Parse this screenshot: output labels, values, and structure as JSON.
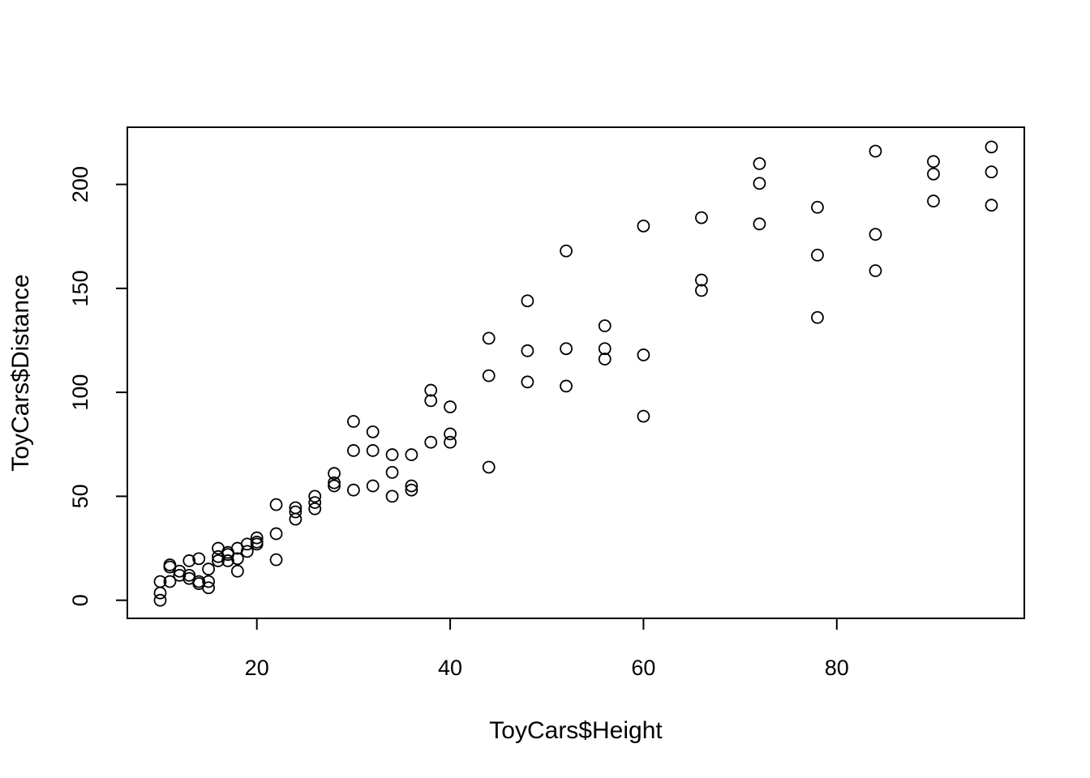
{
  "chart_data": {
    "type": "scatter",
    "title": "",
    "xlabel": "ToyCars$Height",
    "ylabel": "ToyCars$Distance",
    "xlim": [
      6.6,
      99.4
    ],
    "ylim": [
      -8.7,
      227.5
    ],
    "x_ticks": [
      20,
      40,
      60,
      80
    ],
    "x_tick_labels": [
      "20",
      "40",
      "60",
      "80"
    ],
    "y_ticks": [
      0,
      50,
      100,
      150,
      200
    ],
    "y_tick_labels": [
      "0",
      "50",
      "100",
      "150",
      "200"
    ],
    "grid": false,
    "legend": "none",
    "marker": "open-circle",
    "points": [
      [
        10,
        0
      ],
      [
        10,
        3.5
      ],
      [
        10,
        9
      ],
      [
        11,
        9
      ],
      [
        11,
        16
      ],
      [
        11,
        17
      ],
      [
        12,
        12
      ],
      [
        12,
        14
      ],
      [
        13,
        10.5
      ],
      [
        13,
        12
      ],
      [
        13,
        19
      ],
      [
        14,
        8
      ],
      [
        14,
        9
      ],
      [
        14,
        20
      ],
      [
        15,
        6
      ],
      [
        15,
        9
      ],
      [
        15,
        15
      ],
      [
        16,
        19
      ],
      [
        16,
        21
      ],
      [
        16,
        25
      ],
      [
        17,
        19
      ],
      [
        17,
        22
      ],
      [
        17,
        23
      ],
      [
        18,
        14
      ],
      [
        18,
        20
      ],
      [
        18,
        25
      ],
      [
        19,
        23.5
      ],
      [
        19,
        27
      ],
      [
        20,
        27
      ],
      [
        20,
        28
      ],
      [
        20,
        30
      ],
      [
        22,
        19.5
      ],
      [
        22,
        32
      ],
      [
        22,
        46
      ],
      [
        24,
        39
      ],
      [
        24,
        42.5
      ],
      [
        24,
        44.5
      ],
      [
        26,
        44
      ],
      [
        26,
        47
      ],
      [
        26,
        50
      ],
      [
        28,
        55
      ],
      [
        28,
        56.5
      ],
      [
        28,
        61
      ],
      [
        30,
        53
      ],
      [
        30,
        72
      ],
      [
        30,
        86
      ],
      [
        32,
        55
      ],
      [
        32,
        72
      ],
      [
        32,
        81
      ],
      [
        34,
        50
      ],
      [
        34,
        61.5
      ],
      [
        34,
        70
      ],
      [
        36,
        53
      ],
      [
        36,
        55
      ],
      [
        36,
        70
      ],
      [
        38,
        76
      ],
      [
        38,
        96
      ],
      [
        38,
        101
      ],
      [
        40,
        76
      ],
      [
        40,
        80
      ],
      [
        40,
        93
      ],
      [
        44,
        64
      ],
      [
        44,
        108
      ],
      [
        44,
        126
      ],
      [
        48,
        105
      ],
      [
        48,
        120
      ],
      [
        48,
        144
      ],
      [
        52,
        103
      ],
      [
        52,
        121
      ],
      [
        52,
        168
      ],
      [
        56,
        116
      ],
      [
        56,
        121
      ],
      [
        56,
        132
      ],
      [
        60,
        88.5
      ],
      [
        60,
        118
      ],
      [
        60,
        180
      ],
      [
        66,
        149
      ],
      [
        66,
        154
      ],
      [
        66,
        184
      ],
      [
        72,
        181
      ],
      [
        72,
        200.5
      ],
      [
        72,
        210
      ],
      [
        78,
        136
      ],
      [
        78,
        166
      ],
      [
        78,
        189
      ],
      [
        84,
        158.5
      ],
      [
        84,
        176
      ],
      [
        84,
        216
      ],
      [
        90,
        192
      ],
      [
        90,
        205
      ],
      [
        90,
        211
      ],
      [
        96,
        190
      ],
      [
        96,
        206
      ],
      [
        96,
        218
      ]
    ]
  }
}
